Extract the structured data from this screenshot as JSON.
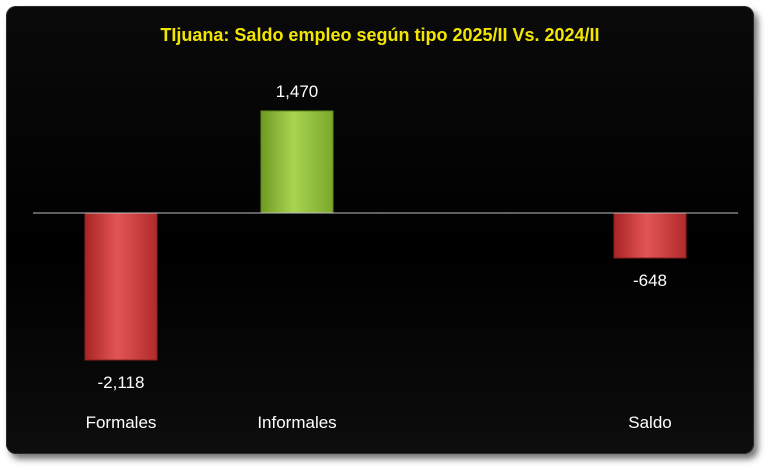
{
  "chart_data": {
    "type": "bar",
    "title": "TIjuana: Saldo empleo según tipo 2025/II Vs. 2024/II",
    "categories": [
      "Formales",
      "Informales",
      "Saldo"
    ],
    "values": [
      -2118,
      1470,
      -648
    ],
    "data_labels": [
      "-2,118",
      "1,470",
      "-648"
    ],
    "colors": {
      "negative": "#c43434",
      "positive": "#8fbd3a",
      "background": "#000000",
      "axis": "#bfbfbf",
      "title": "#f2e600"
    },
    "xlabel": "",
    "ylabel": "",
    "grid": false,
    "legend": "none"
  }
}
